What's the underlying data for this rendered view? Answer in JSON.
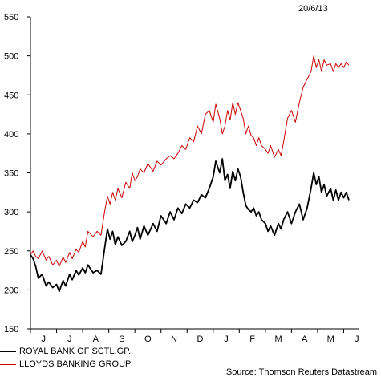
{
  "date_label": "20/6/13",
  "source": "Source: Thomson Reuters Datastream",
  "colors": {
    "rbs": "#000000",
    "lloyds": "#cc0000",
    "axis": "#000000"
  },
  "chart_data": {
    "type": "line",
    "xlabel": "",
    "ylabel": "",
    "ylim": [
      150,
      550
    ],
    "yticks": [
      150,
      200,
      250,
      300,
      350,
      400,
      450,
      500,
      550
    ],
    "xlim": [
      0,
      12.6
    ],
    "month_ticks": [
      "J",
      "J",
      "A",
      "S",
      "O",
      "N",
      "D",
      "J",
      "F",
      "M",
      "A",
      "M",
      "J"
    ],
    "legend_position": "bottom-left",
    "series": [
      {
        "name": "ROYAL BANK OF SCTL.GP.",
        "key": "rbs",
        "x": [
          0,
          0.1,
          0.2,
          0.3,
          0.45,
          0.6,
          0.7,
          0.85,
          1.0,
          1.1,
          1.25,
          1.35,
          1.5,
          1.6,
          1.75,
          1.85,
          2.0,
          2.1,
          2.2,
          2.4,
          2.55,
          2.7,
          2.85,
          2.95,
          3.05,
          3.15,
          3.25,
          3.35,
          3.5,
          3.65,
          3.8,
          3.9,
          4.0,
          4.1,
          4.2,
          4.35,
          4.5,
          4.7,
          4.85,
          5.0,
          5.2,
          5.35,
          5.5,
          5.65,
          5.8,
          5.95,
          6.1,
          6.25,
          6.4,
          6.55,
          6.7,
          6.85,
          7.0,
          7.1,
          7.25,
          7.35,
          7.45,
          7.55,
          7.65,
          7.75,
          7.85,
          7.95,
          8.05,
          8.15,
          8.25,
          8.35,
          8.45,
          8.55,
          8.65,
          8.75,
          8.85,
          9.0,
          9.1,
          9.2,
          9.35,
          9.5,
          9.6,
          9.7,
          9.85,
          10.0,
          10.15,
          10.3,
          10.45,
          10.6,
          10.75,
          10.85,
          10.95,
          11.05,
          11.15,
          11.25,
          11.35,
          11.5,
          11.6,
          11.7,
          11.8,
          11.9,
          12.0,
          12.1,
          12.2
        ],
        "values": [
          245,
          240,
          230,
          215,
          220,
          205,
          210,
          203,
          207,
          198,
          212,
          205,
          220,
          213,
          225,
          219,
          228,
          222,
          232,
          222,
          225,
          220,
          255,
          278,
          265,
          275,
          258,
          268,
          257,
          262,
          275,
          262,
          270,
          280,
          265,
          282,
          270,
          285,
          275,
          295,
          285,
          300,
          290,
          305,
          298,
          310,
          305,
          315,
          312,
          322,
          318,
          330,
          345,
          365,
          350,
          368,
          340,
          348,
          330,
          352,
          340,
          355,
          345,
          325,
          308,
          303,
          300,
          305,
          295,
          300,
          290,
          285,
          275,
          282,
          270,
          285,
          278,
          290,
          300,
          285,
          300,
          310,
          290,
          305,
          330,
          350,
          335,
          345,
          325,
          335,
          320,
          330,
          315,
          328,
          315,
          325,
          318,
          325,
          315
        ]
      },
      {
        "name": "LLOYDS BANKING GROUP",
        "key": "lloyds",
        "x": [
          0,
          0.1,
          0.2,
          0.3,
          0.45,
          0.6,
          0.7,
          0.85,
          1.0,
          1.1,
          1.25,
          1.35,
          1.5,
          1.6,
          1.75,
          1.85,
          2.0,
          2.1,
          2.2,
          2.4,
          2.55,
          2.7,
          2.85,
          2.95,
          3.05,
          3.15,
          3.25,
          3.35,
          3.5,
          3.65,
          3.8,
          3.9,
          4.0,
          4.1,
          4.2,
          4.35,
          4.5,
          4.7,
          4.85,
          5.0,
          5.2,
          5.35,
          5.5,
          5.65,
          5.8,
          5.95,
          6.1,
          6.25,
          6.4,
          6.55,
          6.7,
          6.85,
          7.0,
          7.1,
          7.25,
          7.35,
          7.45,
          7.55,
          7.65,
          7.75,
          7.85,
          7.95,
          8.05,
          8.15,
          8.25,
          8.35,
          8.45,
          8.55,
          8.65,
          8.75,
          8.85,
          9.0,
          9.1,
          9.2,
          9.35,
          9.5,
          9.6,
          9.7,
          9.85,
          10.0,
          10.15,
          10.3,
          10.45,
          10.6,
          10.75,
          10.85,
          10.95,
          11.05,
          11.15,
          11.25,
          11.35,
          11.5,
          11.6,
          11.7,
          11.8,
          11.9,
          12.0,
          12.1,
          12.2
        ],
        "values": [
          245,
          250,
          243,
          240,
          250,
          238,
          243,
          232,
          238,
          230,
          242,
          235,
          248,
          240,
          252,
          248,
          262,
          255,
          275,
          268,
          275,
          270,
          302,
          320,
          310,
          325,
          315,
          330,
          318,
          338,
          330,
          350,
          340,
          345,
          355,
          350,
          362,
          352,
          365,
          360,
          368,
          372,
          368,
          375,
          385,
          380,
          395,
          390,
          410,
          400,
          425,
          430,
          415,
          438,
          420,
          400,
          410,
          430,
          418,
          440,
          425,
          440,
          430,
          420,
          400,
          410,
          398,
          395,
          385,
          395,
          385,
          380,
          375,
          385,
          370,
          380,
          372,
          390,
          420,
          430,
          415,
          440,
          460,
          470,
          480,
          500,
          485,
          495,
          480,
          495,
          488,
          490,
          480,
          490,
          485,
          490,
          485,
          492,
          488
        ]
      }
    ]
  }
}
